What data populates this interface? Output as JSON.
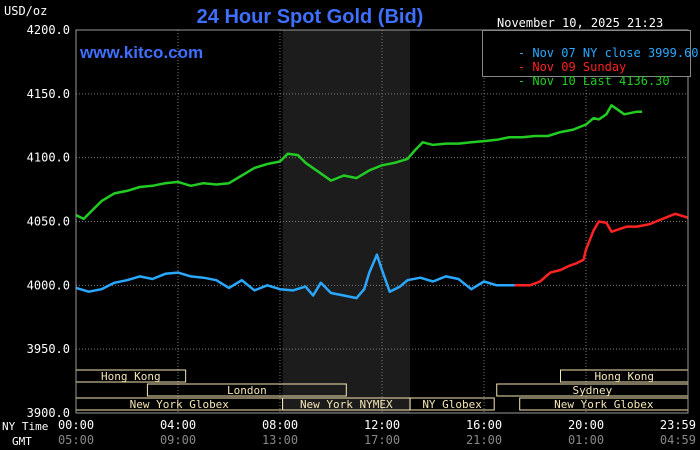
{
  "header": {
    "unit": "USD/oz",
    "title": "24 Hour Spot Gold (Bid)",
    "timestamp": "November 10, 2025 21:23",
    "watermark": "www.kitco.com"
  },
  "legend": [
    {
      "label": "Nov 07 NY close 3999.60",
      "color": "#2aa8ff"
    },
    {
      "label": "Nov 09 Sunday",
      "color": "#ff2222"
    },
    {
      "label": "Nov 10 Last 4136.30",
      "color": "#22cc22"
    }
  ],
  "colors": {
    "background": "#000000",
    "plot_background": "#000000",
    "shaded_session": "#1c1c1c",
    "grid": "#7a7a7a",
    "session_bar": "#f5e6b5",
    "title": "#3f6fff"
  },
  "row_labels": {
    "ny_time": "NY Time",
    "gmt": "GMT"
  },
  "chart_data": {
    "type": "line",
    "title": "24 Hour Spot Gold (Bid)",
    "ylabel": "USD/oz",
    "ylim": [
      3900,
      4200
    ],
    "xlim": [
      0,
      24
    ],
    "grid": true,
    "legend_position": "top-right",
    "y_ticks": [
      {
        "value": 3900,
        "label": "3900.0"
      },
      {
        "value": 3950,
        "label": "3950.0"
      },
      {
        "value": 4000,
        "label": "4000.0"
      },
      {
        "value": 4050,
        "label": "4050.0"
      },
      {
        "value": 4100,
        "label": "4100.0"
      },
      {
        "value": 4150,
        "label": "4150.0"
      },
      {
        "value": 4200,
        "label": "4200.0"
      }
    ],
    "x_ticks": [
      {
        "value": 0,
        "ny": "00:00",
        "gmt": "05:00"
      },
      {
        "value": 4,
        "ny": "04:00",
        "gmt": "09:00"
      },
      {
        "value": 8,
        "ny": "08:00",
        "gmt": "13:00"
      },
      {
        "value": 12,
        "ny": "12:00",
        "gmt": "17:00"
      },
      {
        "value": 16,
        "ny": "16:00",
        "gmt": "21:00"
      },
      {
        "value": 20,
        "ny": "20:00",
        "gmt": "01:00"
      },
      {
        "value": 24,
        "ny": "23:59",
        "gmt": "04:59"
      }
    ],
    "shaded_range": [
      8.1,
      13.1
    ],
    "sessions": [
      {
        "label": "Hong Kong",
        "start": 0,
        "end": 4.3,
        "row": 1
      },
      {
        "label": "Hong Kong",
        "start": 19,
        "end": 24,
        "row": 1
      },
      {
        "label": "London",
        "start": 2.8,
        "end": 10.6,
        "row": 2
      },
      {
        "label": "Sydney",
        "start": 16.5,
        "end": 24,
        "row": 2
      },
      {
        "label": "New York Globex",
        "start": 0,
        "end": 8.1,
        "row": 3
      },
      {
        "label": "New York NYMEX",
        "start": 8.1,
        "end": 13.1,
        "row": 3
      },
      {
        "label": "NY Globex",
        "start": 13.1,
        "end": 16.4,
        "row": 3
      },
      {
        "label": "New York Globex",
        "start": 17.4,
        "end": 24,
        "row": 3
      }
    ],
    "series": [
      {
        "name": "Nov 07 NY close 3999.60",
        "color": "#2aa8ff",
        "x": [
          0,
          0.5,
          1,
          1.5,
          2,
          2.5,
          3,
          3.5,
          4,
          4.5,
          5,
          5.5,
          6,
          6.5,
          7,
          7.5,
          8,
          8.5,
          9,
          9.3,
          9.6,
          10,
          10.5,
          11,
          11.3,
          11.5,
          11.8,
          12,
          12.3,
          12.7,
          13,
          13.5,
          14,
          14.5,
          15,
          15.5,
          16,
          16.5,
          17,
          17.2
        ],
        "y": [
          3998,
          3995,
          3997,
          4002,
          4004,
          4007,
          4005,
          4009,
          4010,
          4007,
          4006,
          4004,
          3998,
          4004,
          3996,
          4000,
          3997,
          3996,
          3999,
          3992,
          4002,
          3994,
          3992,
          3990,
          3997,
          4010,
          4024,
          4012,
          3995,
          3999,
          4004,
          4006,
          4003,
          4007,
          4005,
          3997,
          4003,
          4000,
          4000,
          4000
        ]
      },
      {
        "name": "Nov 09 Sunday",
        "color": "#ff2222",
        "x": [
          17.2,
          17.8,
          18.2,
          18.6,
          19,
          19.3,
          19.6,
          19.9,
          20,
          20.3,
          20.5,
          20.8,
          21,
          21.3,
          21.6,
          22,
          22.5,
          23,
          23.5,
          24
        ],
        "y": [
          4000,
          4000,
          4003,
          4010,
          4012,
          4015,
          4017,
          4020,
          4028,
          4043,
          4050,
          4049,
          4042,
          4044,
          4046,
          4046,
          4048,
          4052,
          4056,
          4053
        ]
      },
      {
        "name": "Nov 10 Last 4136.30",
        "color": "#22cc22",
        "x": [
          0,
          0.3,
          0.6,
          1,
          1.5,
          2,
          2.5,
          3,
          3.5,
          4,
          4.5,
          5,
          5.5,
          6,
          6.5,
          7,
          7.5,
          8,
          8.3,
          8.7,
          9,
          9.5,
          10,
          10.5,
          11,
          11.5,
          12,
          12.5,
          13,
          13.3,
          13.6,
          14,
          14.5,
          15,
          15.5,
          16,
          16.5,
          17,
          17.5,
          18,
          18.5,
          19,
          19.5,
          20,
          20.3,
          20.5,
          20.8,
          21,
          21.5,
          22,
          22.2
        ],
        "y": [
          4055,
          4052,
          4058,
          4066,
          4072,
          4074,
          4077,
          4078,
          4080,
          4081,
          4078,
          4080,
          4079,
          4080,
          4086,
          4092,
          4095,
          4097,
          4103,
          4102,
          4096,
          4089,
          4082,
          4086,
          4084,
          4090,
          4094,
          4096,
          4099,
          4106,
          4112,
          4110,
          4111,
          4111,
          4112,
          4113,
          4114,
          4116,
          4116,
          4117,
          4117,
          4120,
          4122,
          4126,
          4131,
          4130,
          4134,
          4141,
          4134,
          4136,
          4136
        ]
      }
    ]
  }
}
